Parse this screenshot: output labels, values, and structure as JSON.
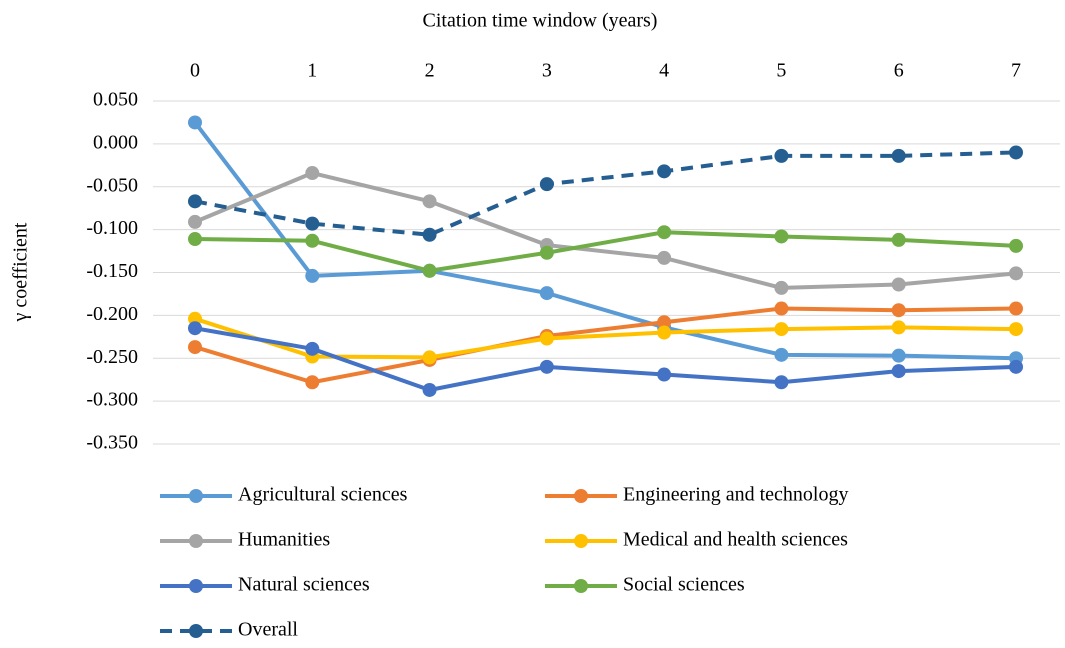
{
  "chart_data": {
    "type": "line",
    "x_label": "Citation time window (years)",
    "y_label": "γ coefficient",
    "x": [
      0,
      1,
      2,
      3,
      4,
      5,
      6,
      7
    ],
    "xlim": [
      0,
      7
    ],
    "xticks": [
      0,
      1,
      2,
      3,
      4,
      5,
      6,
      7
    ],
    "ylim": [
      -0.35,
      0.05
    ],
    "yticks": [
      {
        "value": 0.05,
        "label": "0.050"
      },
      {
        "value": 0,
        "label": "0.000"
      },
      {
        "value": -0.05,
        "label": "-0.050"
      },
      {
        "value": -0.1,
        "label": "-0.100"
      },
      {
        "value": -0.15,
        "label": "-0.150"
      },
      {
        "value": -0.2,
        "label": "-0.200"
      },
      {
        "value": -0.25,
        "label": "-0.250"
      },
      {
        "value": -0.3,
        "label": "-0.300"
      },
      {
        "value": -0.35,
        "label": "-0.350"
      }
    ],
    "grid": true,
    "legend": "bottom",
    "series": [
      {
        "name": "Agricultural sciences",
        "color": "#5b9bd5",
        "values": [
          0.025,
          -0.154,
          -0.148,
          -0.174,
          -0.214,
          -0.246,
          -0.247,
          -0.25
        ]
      },
      {
        "name": "Engineering and technology",
        "color": "#ed7d31",
        "values": [
          -0.237,
          -0.278,
          -0.252,
          -0.224,
          -0.208,
          -0.192,
          -0.194,
          -0.192
        ]
      },
      {
        "name": "Humanities",
        "color": "#a5a5a5",
        "values": [
          -0.091,
          -0.034,
          -0.067,
          -0.118,
          -0.133,
          -0.168,
          -0.164,
          -0.151
        ]
      },
      {
        "name": "Medical and health sciences",
        "color": "#ffc000",
        "values": [
          -0.204,
          -0.248,
          -0.249,
          -0.227,
          -0.22,
          -0.216,
          -0.214,
          -0.216
        ]
      },
      {
        "name": "Natural sciences",
        "color": "#4472c4",
        "values": [
          -0.215,
          -0.239,
          -0.287,
          -0.26,
          -0.269,
          -0.278,
          -0.265,
          -0.26
        ]
      },
      {
        "name": "Social sciences",
        "color": "#70ad47",
        "values": [
          -0.111,
          -0.113,
          -0.148,
          -0.127,
          -0.103,
          -0.108,
          -0.112,
          -0.119
        ]
      },
      {
        "name": "Overall",
        "color": "#255e91",
        "dashed": true,
        "values": [
          -0.067,
          -0.093,
          -0.106,
          -0.047,
          -0.032,
          -0.014,
          -0.014,
          -0.01
        ]
      }
    ]
  }
}
